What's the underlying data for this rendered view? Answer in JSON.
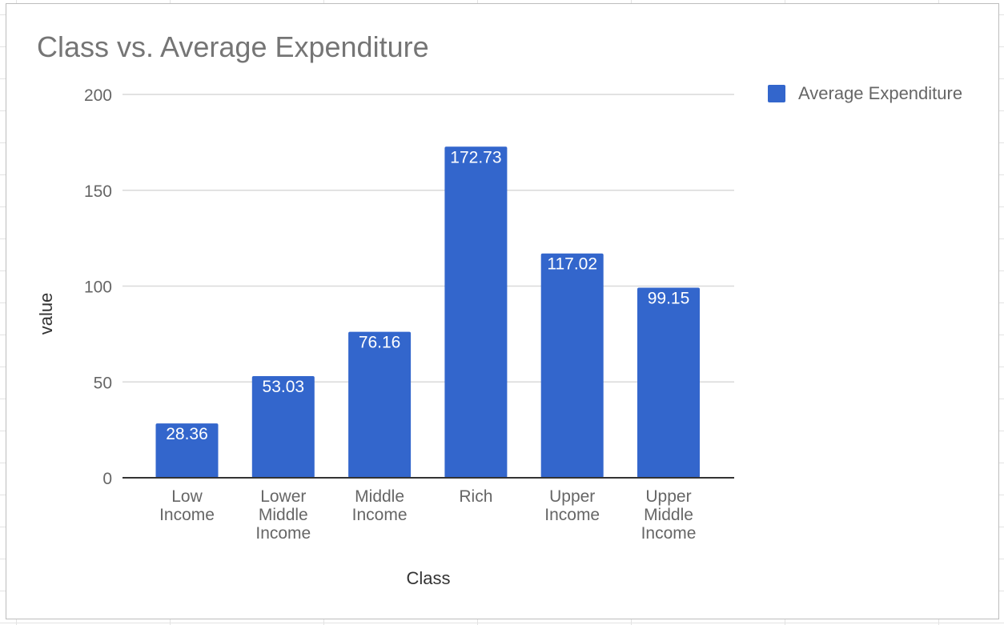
{
  "chart_data": {
    "type": "bar",
    "title": "Class vs. Average Expenditure",
    "xlabel": "Class",
    "ylabel": "value",
    "categories": [
      [
        "Low",
        "Income"
      ],
      [
        "Lower",
        "Middle",
        "Income"
      ],
      [
        "Middle",
        "Income"
      ],
      [
        "Rich"
      ],
      [
        "Upper",
        "Income"
      ],
      [
        "Upper",
        "Middle",
        "Income"
      ]
    ],
    "series": [
      {
        "name": "Average Expenditure",
        "values": [
          28.36,
          53.03,
          76.16,
          172.73,
          117.02,
          99.15
        ]
      }
    ],
    "data_labels": [
      "28.36",
      "53.03",
      "76.16",
      "172.73",
      "117.02",
      "99.15"
    ],
    "yticks": [
      0,
      50,
      100,
      150,
      200
    ],
    "ylim": [
      0,
      200
    ],
    "grid": true,
    "legend_position": "right",
    "colors": {
      "bar": "#3366cc",
      "grid": "#d9d9d9",
      "axis": "#333333",
      "text": "#666666"
    }
  }
}
